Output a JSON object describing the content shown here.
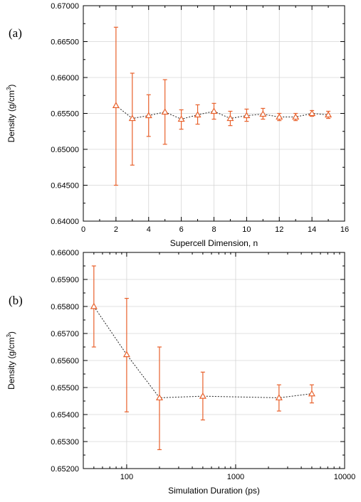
{
  "chart_data": [
    {
      "type": "scatter",
      "panel_label": "(a)",
      "xlabel": "Supercell Dimension, n",
      "ylabel_main": "Density (g/cm",
      "ylabel_sup": "3",
      "ylabel_close": ")",
      "xlim": [
        0,
        16
      ],
      "ylim": [
        0.64,
        0.67
      ],
      "x_scale": "linear",
      "grid": true,
      "x_ticks": [
        0,
        2,
        4,
        6,
        8,
        10,
        12,
        14,
        16
      ],
      "x_tick_labels": [
        "0",
        "2",
        "4",
        "6",
        "8",
        "10",
        "12",
        "14",
        "16"
      ],
      "y_ticks": [
        0.64,
        0.645,
        0.65,
        0.655,
        0.66,
        0.665,
        0.67
      ],
      "y_tick_labels": [
        "0.64000",
        "0.64500",
        "0.65000",
        "0.65500",
        "0.66000",
        "0.66500",
        "0.67000"
      ],
      "marker_color": "#e8612c",
      "line_color": "#222222",
      "x": [
        2,
        3,
        4,
        5,
        6,
        7,
        8,
        9,
        10,
        11,
        12,
        13,
        14,
        15
      ],
      "y": [
        0.6561,
        0.6543,
        0.6547,
        0.6552,
        0.6542,
        0.6548,
        0.6553,
        0.6543,
        0.6547,
        0.6549,
        0.6545,
        0.6545,
        0.655,
        0.6548
      ],
      "err_low": [
        0.645,
        0.6478,
        0.6518,
        0.6507,
        0.6528,
        0.6535,
        0.6542,
        0.6533,
        0.6539,
        0.6542,
        0.654,
        0.654,
        0.6546,
        0.6543
      ],
      "err_high": [
        0.667,
        0.6606,
        0.6576,
        0.6597,
        0.6555,
        0.6562,
        0.6564,
        0.6553,
        0.6556,
        0.6557,
        0.655,
        0.655,
        0.6554,
        0.6553
      ]
    },
    {
      "type": "scatter",
      "panel_label": "(b)",
      "xlabel": "Simulation Duration (ps)",
      "ylabel_main": "Density (g/cm",
      "ylabel_sup": "3",
      "ylabel_close": ")",
      "xlim": [
        40,
        10000
      ],
      "ylim": [
        0.652,
        0.66
      ],
      "x_scale": "log",
      "grid": true,
      "x_ticks": [
        100,
        1000,
        10000
      ],
      "x_tick_labels": [
        "100",
        "1000",
        "10000"
      ],
      "y_ticks": [
        0.652,
        0.653,
        0.654,
        0.655,
        0.656,
        0.657,
        0.658,
        0.659,
        0.66
      ],
      "y_tick_labels": [
        "0.65200",
        "0.65300",
        "0.65400",
        "0.65500",
        "0.65600",
        "0.65700",
        "0.65800",
        "0.65900",
        "0.66000"
      ],
      "marker_color": "#e8612c",
      "line_color": "#222222",
      "x": [
        50,
        100,
        200,
        500,
        2500,
        5000
      ],
      "y": [
        0.658,
        0.65622,
        0.65462,
        0.65468,
        0.65462,
        0.65477
      ],
      "err_low": [
        0.6565,
        0.6541,
        0.6527,
        0.6538,
        0.65413,
        0.65443
      ],
      "err_high": [
        0.6595,
        0.6583,
        0.6565,
        0.65557,
        0.6551,
        0.6551
      ]
    }
  ]
}
